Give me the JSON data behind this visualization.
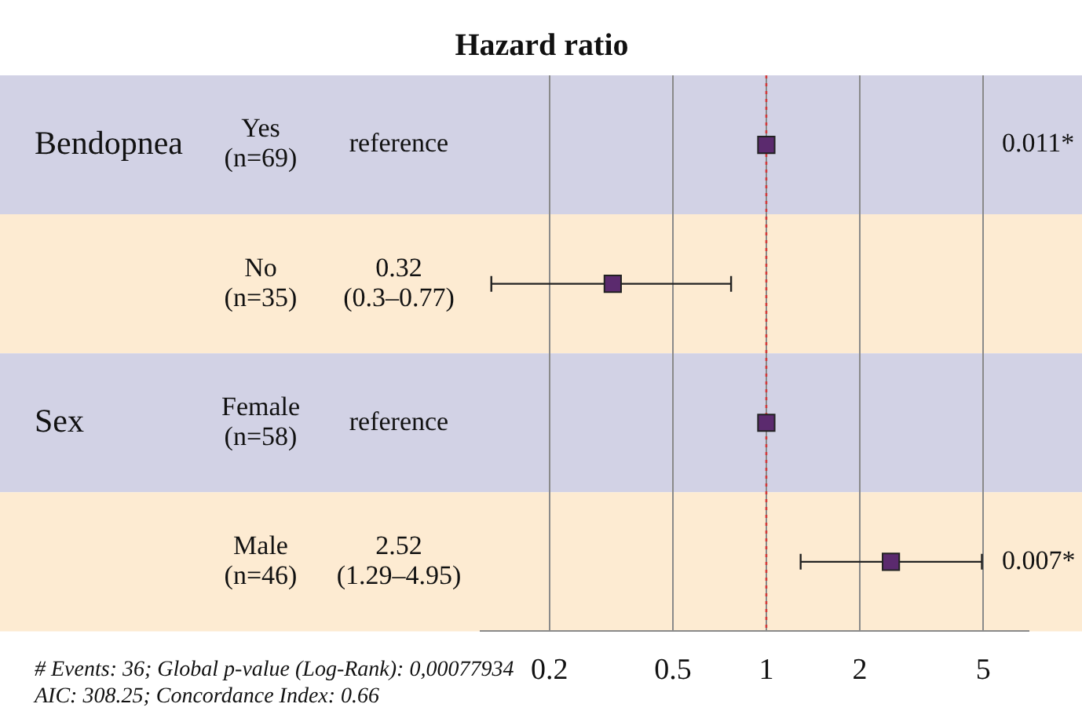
{
  "chart_data": {
    "type": "scatter",
    "orientation": "horizontal",
    "title": "Hazard ratio",
    "categories": [
      "Yes\n(n=69)",
      "No\n(n=35)",
      "Female\n(n=58)",
      "Male\n(n=46)"
    ],
    "y2_categories": [
      "0.011*",
      null,
      null,
      "0.007*"
    ],
    "values": [
      1,
      0.32,
      1,
      2.52
    ],
    "errors": [
      null,
      [
        0.13,
        0.77
      ],
      null,
      [
        1.29,
        4.95
      ]
    ],
    "value_labels": [
      "reference",
      "0.32\n(0.3–0.77)",
      "reference",
      "2.52\n(1.29–4.95)"
    ],
    "color": "#5b2a6e",
    "marker": "square",
    "log": "x",
    "xlim": [
      0.12,
      7
    ],
    "xticks": [
      0.2,
      0.5,
      1,
      2,
      5
    ],
    "grid": "x",
    "legend": false,
    "ref_lines": [
      {
        "axis": "x",
        "value": 1,
        "color": "#d23a3a",
        "line_style": "dotted"
      }
    ],
    "bands": [
      {
        "axis": "y",
        "from": "Yes\n(n=69)",
        "to": "Yes\n(n=69)",
        "color": "#d2d2e5"
      },
      {
        "axis": "y",
        "from": "No\n(n=35)",
        "to": "No\n(n=35)",
        "color": "#fdebd2"
      },
      {
        "axis": "y",
        "from": "Female\n(n=58)",
        "to": "Female\n(n=58)",
        "color": "#d2d2e5"
      },
      {
        "axis": "y",
        "from": "Male\n(n=46)",
        "to": "Male\n(n=46)",
        "color": "#fdebd2"
      }
    ],
    "annotations": [
      "Bendopnea",
      "Sex",
      "# Events: 36; Global p-value (Log-Rank): 0,00077934",
      "AIC: 308.25; Concordance Index: 0.66"
    ]
  }
}
